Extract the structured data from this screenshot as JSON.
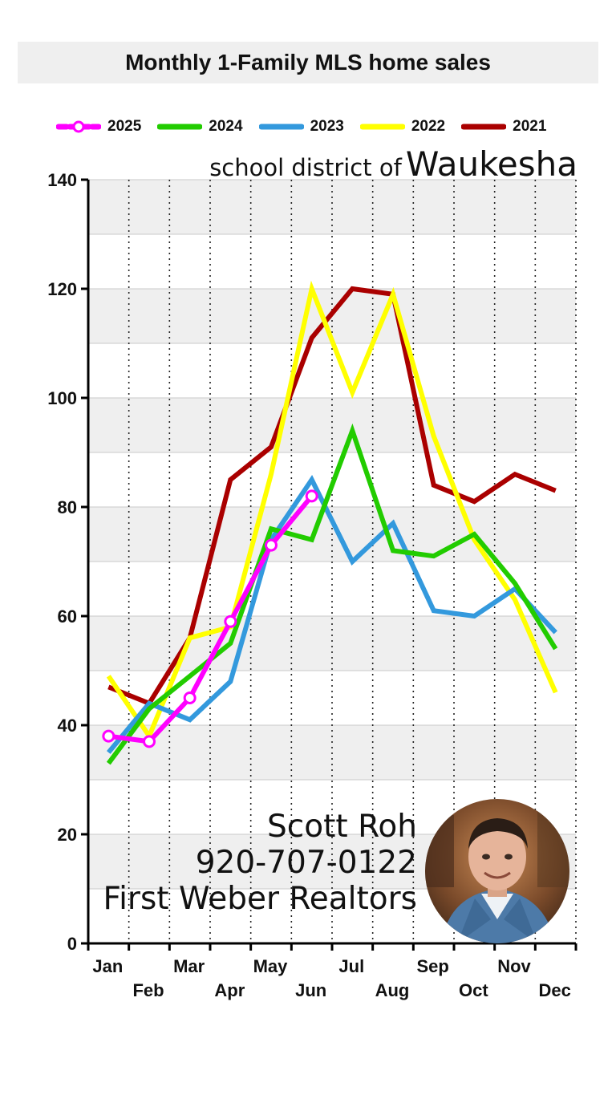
{
  "header": {
    "title": "Monthly 1-Family MLS home sales"
  },
  "subtitle": {
    "prefix": "school district of",
    "place": "Waukesha"
  },
  "contact": {
    "name": "Scott Roh",
    "phone": "920-707-0122",
    "company": "First Weber Realtors"
  },
  "colors": {
    "2025": "#ff00ff",
    "2024": "#22cc00",
    "2023": "#3399dd",
    "2022": "#ffff00",
    "2021": "#aa0000",
    "band": "#efefef",
    "axis": "#000000"
  },
  "chart_data": {
    "type": "line",
    "title": "Monthly 1-Family MLS home sales",
    "categories": [
      "Jan",
      "Feb",
      "Mar",
      "Apr",
      "May",
      "Jun",
      "Jul",
      "Aug",
      "Sep",
      "Oct",
      "Nov",
      "Dec"
    ],
    "ylim": [
      0,
      140
    ],
    "yticks": [
      0,
      20,
      40,
      60,
      80,
      100,
      120,
      140
    ],
    "grid": true,
    "legend_position": "top",
    "series": [
      {
        "name": "2025",
        "color": "#ff00ff",
        "markers": true,
        "values": [
          38,
          37,
          45,
          59,
          73,
          82,
          null,
          null,
          null,
          null,
          null,
          null
        ]
      },
      {
        "name": "2024",
        "color": "#22cc00",
        "markers": false,
        "values": [
          33,
          43,
          49,
          55,
          76,
          74,
          94,
          72,
          71,
          75,
          66,
          54
        ]
      },
      {
        "name": "2023",
        "color": "#3399dd",
        "markers": false,
        "values": [
          35,
          44,
          41,
          48,
          74,
          85,
          70,
          77,
          61,
          60,
          65,
          57
        ]
      },
      {
        "name": "2022",
        "color": "#ffff00",
        "markers": false,
        "values": [
          49,
          38,
          56,
          58,
          86,
          120,
          101,
          119,
          93,
          74,
          63,
          46
        ]
      },
      {
        "name": "2021",
        "color": "#aa0000",
        "markers": false,
        "values": [
          47,
          44,
          56,
          85,
          91,
          111,
          120,
          119,
          84,
          81,
          86,
          83
        ]
      }
    ]
  }
}
